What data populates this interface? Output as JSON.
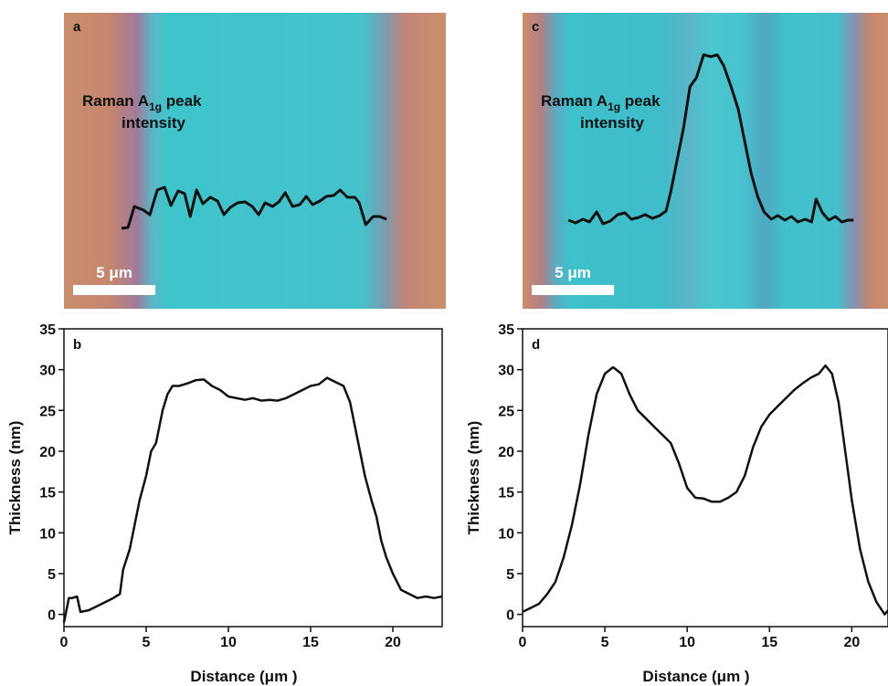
{
  "chart_data": [
    {
      "type": "raman_map",
      "panel": "a",
      "xlim": [
        0,
        23.2
      ],
      "annotation": {
        "text_before": "Raman A",
        "subscript": "1g",
        "text_after": " peak",
        "line2": "intensity"
      },
      "scale_bar_label": "5 μm",
      "scale_bar_length": 5,
      "color": "#111111",
      "x": [
        3.5,
        3.89,
        4.28,
        4.83,
        5.22,
        5.67,
        6.11,
        6.5,
        6.94,
        7.33,
        7.67,
        8.06,
        8.44,
        8.89,
        9.33,
        9.72,
        10.11,
        10.56,
        11,
        11.44,
        11.83,
        12.22,
        12.67,
        13.06,
        13.44,
        13.89,
        14.33,
        14.72,
        15.11,
        15.56,
        15.94,
        16.39,
        16.78,
        17.22,
        17.67,
        17.94,
        18.33,
        18.78,
        19.17,
        19.61
      ],
      "values": [
        5,
        5.5,
        17,
        15,
        12.5,
        26,
        27.5,
        17.5,
        25.5,
        24,
        11.5,
        26,
        18.5,
        22,
        20,
        12.5,
        16.5,
        19,
        19.5,
        17,
        12.5,
        19,
        17,
        19.5,
        24.5,
        17,
        18,
        22.5,
        18,
        20,
        22.5,
        23,
        26,
        22,
        22,
        19,
        7,
        11.5,
        11.5,
        10
      ]
    },
    {
      "type": "raman_map",
      "panel": "c",
      "xlim": [
        0,
        22.2
      ],
      "annotation": {
        "text_before": "Raman A",
        "subscript": "1g",
        "text_after": " peak",
        "line2": "intensity"
      },
      "scale_bar_label": "5 μm",
      "scale_bar_length": 5,
      "color": "#111111",
      "x": [
        2.78,
        3.22,
        3.67,
        4.06,
        4.5,
        4.89,
        5.33,
        5.78,
        6.22,
        6.61,
        7.06,
        7.44,
        7.89,
        8.33,
        8.72,
        9,
        9.39,
        9.78,
        10.17,
        10.56,
        11,
        11.44,
        11.83,
        12.22,
        12.67,
        13.11,
        13.5,
        13.89,
        14.28,
        14.67,
        15.11,
        15.5,
        15.94,
        16.33,
        16.72,
        17.17,
        17.56,
        17.83,
        18.22,
        18.61,
        19,
        19.39,
        19.78,
        20.11
      ],
      "values": [
        9.5,
        8,
        10,
        8.5,
        14,
        7.5,
        9,
        12.5,
        13.5,
        10,
        11,
        12.5,
        10.5,
        12,
        14.5,
        25,
        42.5,
        60,
        82.5,
        87.5,
        100,
        99,
        100,
        94,
        82.5,
        70,
        52.5,
        35,
        22.5,
        14,
        10,
        12,
        9.5,
        11.5,
        8.5,
        10,
        8.5,
        21,
        13.5,
        9.5,
        11.5,
        8.5,
        9.5,
        9.5
      ]
    },
    {
      "type": "line",
      "panel": "b",
      "x_label": "Distance (μm )",
      "y_label": "Thickness (nm)",
      "color": "#111111",
      "xlim": [
        0,
        23
      ],
      "ylim": [
        -1.5,
        35
      ],
      "xticks": [
        0,
        5,
        10,
        15,
        20
      ],
      "yticks": [
        0,
        5,
        10,
        15,
        20,
        25,
        30,
        35
      ],
      "x": [
        0,
        0.3,
        0.5,
        0.8,
        1,
        1.5,
        2,
        2.5,
        3,
        3.4,
        3.6,
        4,
        4.3,
        4.6,
        5,
        5.3,
        5.6,
        6,
        6.3,
        6.6,
        7,
        7.5,
        8,
        8.5,
        9,
        9.5,
        10,
        10.5,
        11,
        11.5,
        12,
        12.5,
        13,
        13.5,
        14,
        14.5,
        15,
        15.5,
        16,
        16.5,
        17,
        17.4,
        17.7,
        18,
        18.3,
        18.7,
        19,
        19.3,
        19.6,
        20,
        20.5,
        21,
        21.5,
        22,
        22.5,
        23
      ],
      "values": [
        -1,
        2,
        2,
        2.2,
        0.3,
        0.5,
        1,
        1.5,
        2,
        2.5,
        5.5,
        8,
        11,
        14,
        17,
        20,
        21,
        25,
        27,
        28,
        28,
        28.3,
        28.7,
        28.8,
        28,
        27.5,
        26.7,
        26.5,
        26.3,
        26.5,
        26.2,
        26.3,
        26.2,
        26.5,
        27,
        27.5,
        28,
        28.2,
        29,
        28.5,
        28,
        26,
        23,
        20,
        17,
        14,
        12,
        9,
        7,
        5,
        3,
        2.5,
        2,
        2.2,
        2,
        2.2
      ]
    },
    {
      "type": "line",
      "panel": "d",
      "x_label": "Distance (μm )",
      "y_label": "Thickness (nm)",
      "color": "#111111",
      "xlim": [
        0,
        22.2
      ],
      "ylim": [
        -1.5,
        35
      ],
      "xticks": [
        0,
        5,
        10,
        15,
        20
      ],
      "yticks": [
        0,
        5,
        10,
        15,
        20,
        25,
        30,
        35
      ],
      "x": [
        0,
        0.5,
        1,
        1.5,
        2,
        2.5,
        3,
        3.5,
        4,
        4.5,
        5,
        5.5,
        6,
        6.5,
        7,
        7.5,
        8,
        8.5,
        9,
        9.5,
        10,
        10.5,
        11,
        11.5,
        12,
        12.5,
        13,
        13.5,
        14,
        14.5,
        15,
        15.5,
        16,
        16.5,
        17,
        17.5,
        18,
        18.4,
        18.8,
        19.2,
        19.6,
        20,
        20.5,
        21,
        21.5,
        22,
        22.2
      ],
      "values": [
        0.3,
        0.8,
        1.3,
        2.5,
        4,
        7,
        11,
        16,
        22,
        27,
        29.5,
        30.3,
        29.5,
        27,
        25,
        24,
        23,
        22,
        21,
        18.5,
        15.5,
        14.3,
        14.2,
        13.8,
        13.8,
        14.3,
        15,
        17,
        20.5,
        23,
        24.5,
        25.5,
        26.5,
        27.5,
        28.3,
        29,
        29.5,
        30.5,
        29.5,
        26,
        20,
        14,
        8,
        4,
        1.5,
        0,
        0.5
      ]
    }
  ]
}
